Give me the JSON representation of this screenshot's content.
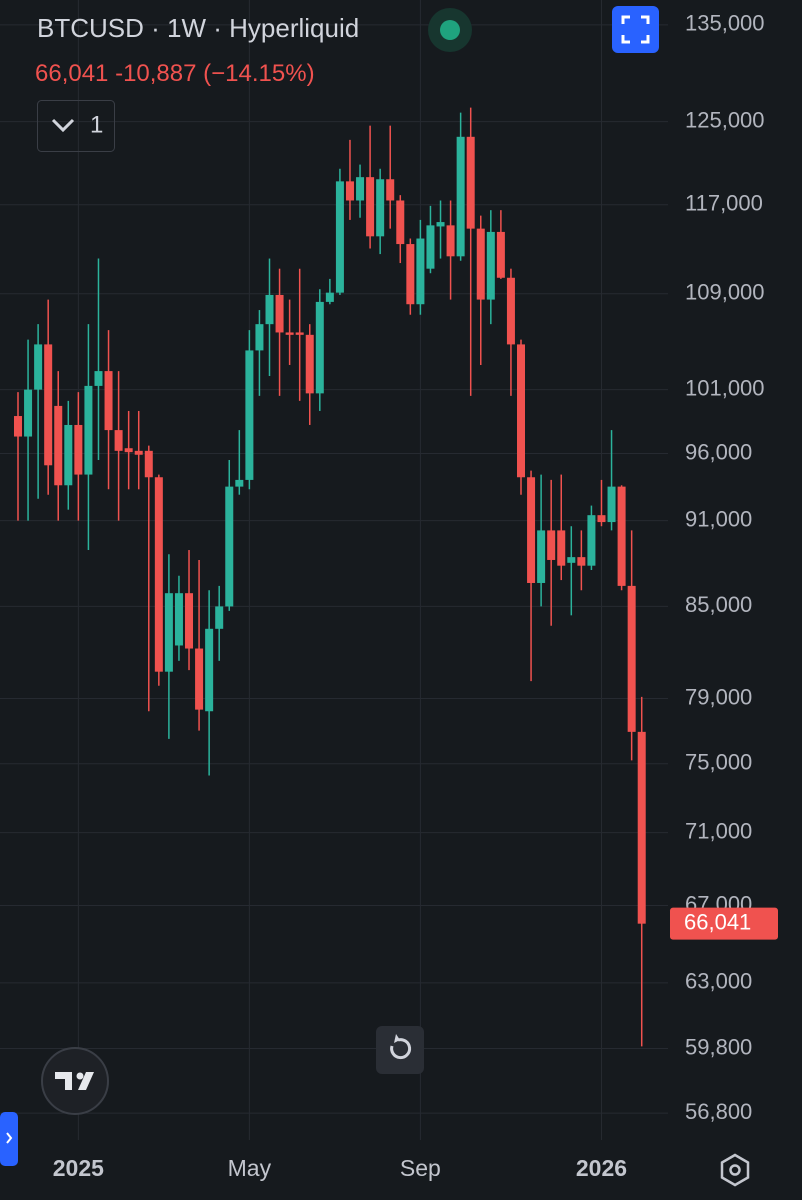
{
  "chart_data": {
    "type": "candlestick",
    "symbol": "BTCUSD",
    "interval": "1W",
    "exchange": "Hyperliquid",
    "indicator_count": "1",
    "change": "-10,887",
    "change_percent": "(−14.15%)",
    "last_price": {
      "value": 66041,
      "label": "66,041"
    },
    "up_color": "#2bb39c",
    "down_color": "#f0524f",
    "log_scale": true,
    "grid": true,
    "ylim": [
      55600,
      137700
    ],
    "yticks": [
      {
        "value": 135000,
        "label": "135,000"
      },
      {
        "value": 125000,
        "label": "125,000"
      },
      {
        "value": 117000,
        "label": "117,000"
      },
      {
        "value": 109000,
        "label": "109,000"
      },
      {
        "value": 101000,
        "label": "101,000"
      },
      {
        "value": 96000,
        "label": "96,000"
      },
      {
        "value": 91000,
        "label": "91,000"
      },
      {
        "value": 85000,
        "label": "85,000"
      },
      {
        "value": 79000,
        "label": "79,000"
      },
      {
        "value": 75000,
        "label": "75,000"
      },
      {
        "value": 71000,
        "label": "71,000"
      },
      {
        "value": 67000,
        "label": "67,000"
      },
      {
        "value": 63000,
        "label": "63,000"
      },
      {
        "value": 59800,
        "label": "59,800"
      },
      {
        "value": 56800,
        "label": "56,800"
      }
    ],
    "categories": [
      null,
      null,
      null,
      null,
      null,
      null,
      "2025",
      null,
      null,
      null,
      null,
      null,
      null,
      null,
      null,
      null,
      null,
      null,
      null,
      null,
      null,
      null,
      null,
      "May",
      null,
      null,
      null,
      null,
      null,
      null,
      null,
      null,
      null,
      null,
      null,
      null,
      null,
      null,
      null,
      null,
      "Sep",
      null,
      null,
      null,
      null,
      null,
      null,
      null,
      null,
      null,
      null,
      null,
      null,
      null,
      null,
      null,
      null,
      null,
      "2026",
      null,
      null,
      null,
      null
    ],
    "open": [
      98900,
      97300,
      101000,
      104700,
      99700,
      93600,
      98200,
      94400,
      101300,
      102500,
      97800,
      96400,
      96200,
      96200,
      94200,
      80700,
      82400,
      85900,
      82200,
      78200,
      83500,
      85000,
      93500,
      94000,
      104200,
      106400,
      108900,
      105700,
      105700,
      105500,
      100700,
      108300,
      109100,
      119200,
      117400,
      119600,
      114100,
      119400,
      117400,
      113400,
      108100,
      111200,
      115000,
      115100,
      112300,
      123500,
      114800,
      108500,
      114500,
      110400,
      104700,
      94200,
      86600,
      90300,
      90300,
      88000,
      88400,
      87800,
      91400,
      90900,
      93500,
      86400,
      76928
    ],
    "high": [
      100800,
      105100,
      106400,
      108500,
      102500,
      100100,
      100800,
      106400,
      112100,
      105900,
      102500,
      99300,
      99300,
      96600,
      94400,
      88600,
      87100,
      88900,
      88200,
      86100,
      86400,
      95500,
      97800,
      105900,
      107600,
      112100,
      111200,
      108500,
      111200,
      106400,
      109400,
      110300,
      120400,
      123200,
      120800,
      124600,
      120400,
      124600,
      117900,
      113900,
      115600,
      116900,
      117400,
      117400,
      125900,
      126400,
      116000,
      116500,
      116500,
      111200,
      105100,
      94700,
      94400,
      94000,
      94400,
      90600,
      90300,
      92100,
      94000,
      97800,
      93600,
      90300,
      79100
    ],
    "low": [
      91000,
      91000,
      92600,
      92900,
      91000,
      91800,
      91000,
      88900,
      95500,
      93300,
      91000,
      93300,
      93300,
      78200,
      79800,
      76500,
      81400,
      80800,
      77000,
      74300,
      81400,
      84700,
      92900,
      93300,
      100500,
      102100,
      100500,
      103000,
      100100,
      98200,
      99300,
      108100,
      108900,
      115600,
      115800,
      113000,
      112500,
      114800,
      111700,
      107200,
      107200,
      110800,
      112100,
      108500,
      111900,
      100500,
      103000,
      106400,
      110300,
      100500,
      92900,
      80100,
      85000,
      83700,
      86800,
      84400,
      86100,
      87500,
      90600,
      90300,
      86100,
      75200,
      59900
    ],
    "close": [
      97300,
      101000,
      104700,
      95100,
      93600,
      98200,
      94400,
      101300,
      102500,
      97800,
      96200,
      96100,
      95900,
      94200,
      80700,
      85900,
      85900,
      82200,
      78300,
      83500,
      85000,
      93500,
      94000,
      104200,
      106400,
      108900,
      105700,
      105500,
      105500,
      100700,
      108300,
      109100,
      119200,
      117400,
      119600,
      114100,
      119400,
      117400,
      113400,
      108100,
      113900,
      115100,
      115400,
      112300,
      123500,
      114800,
      108500,
      114500,
      110400,
      104700,
      94200,
      86600,
      90300,
      88200,
      87800,
      88400,
      87800,
      91400,
      90900,
      93500,
      86400,
      76928,
      66041
    ]
  }
}
